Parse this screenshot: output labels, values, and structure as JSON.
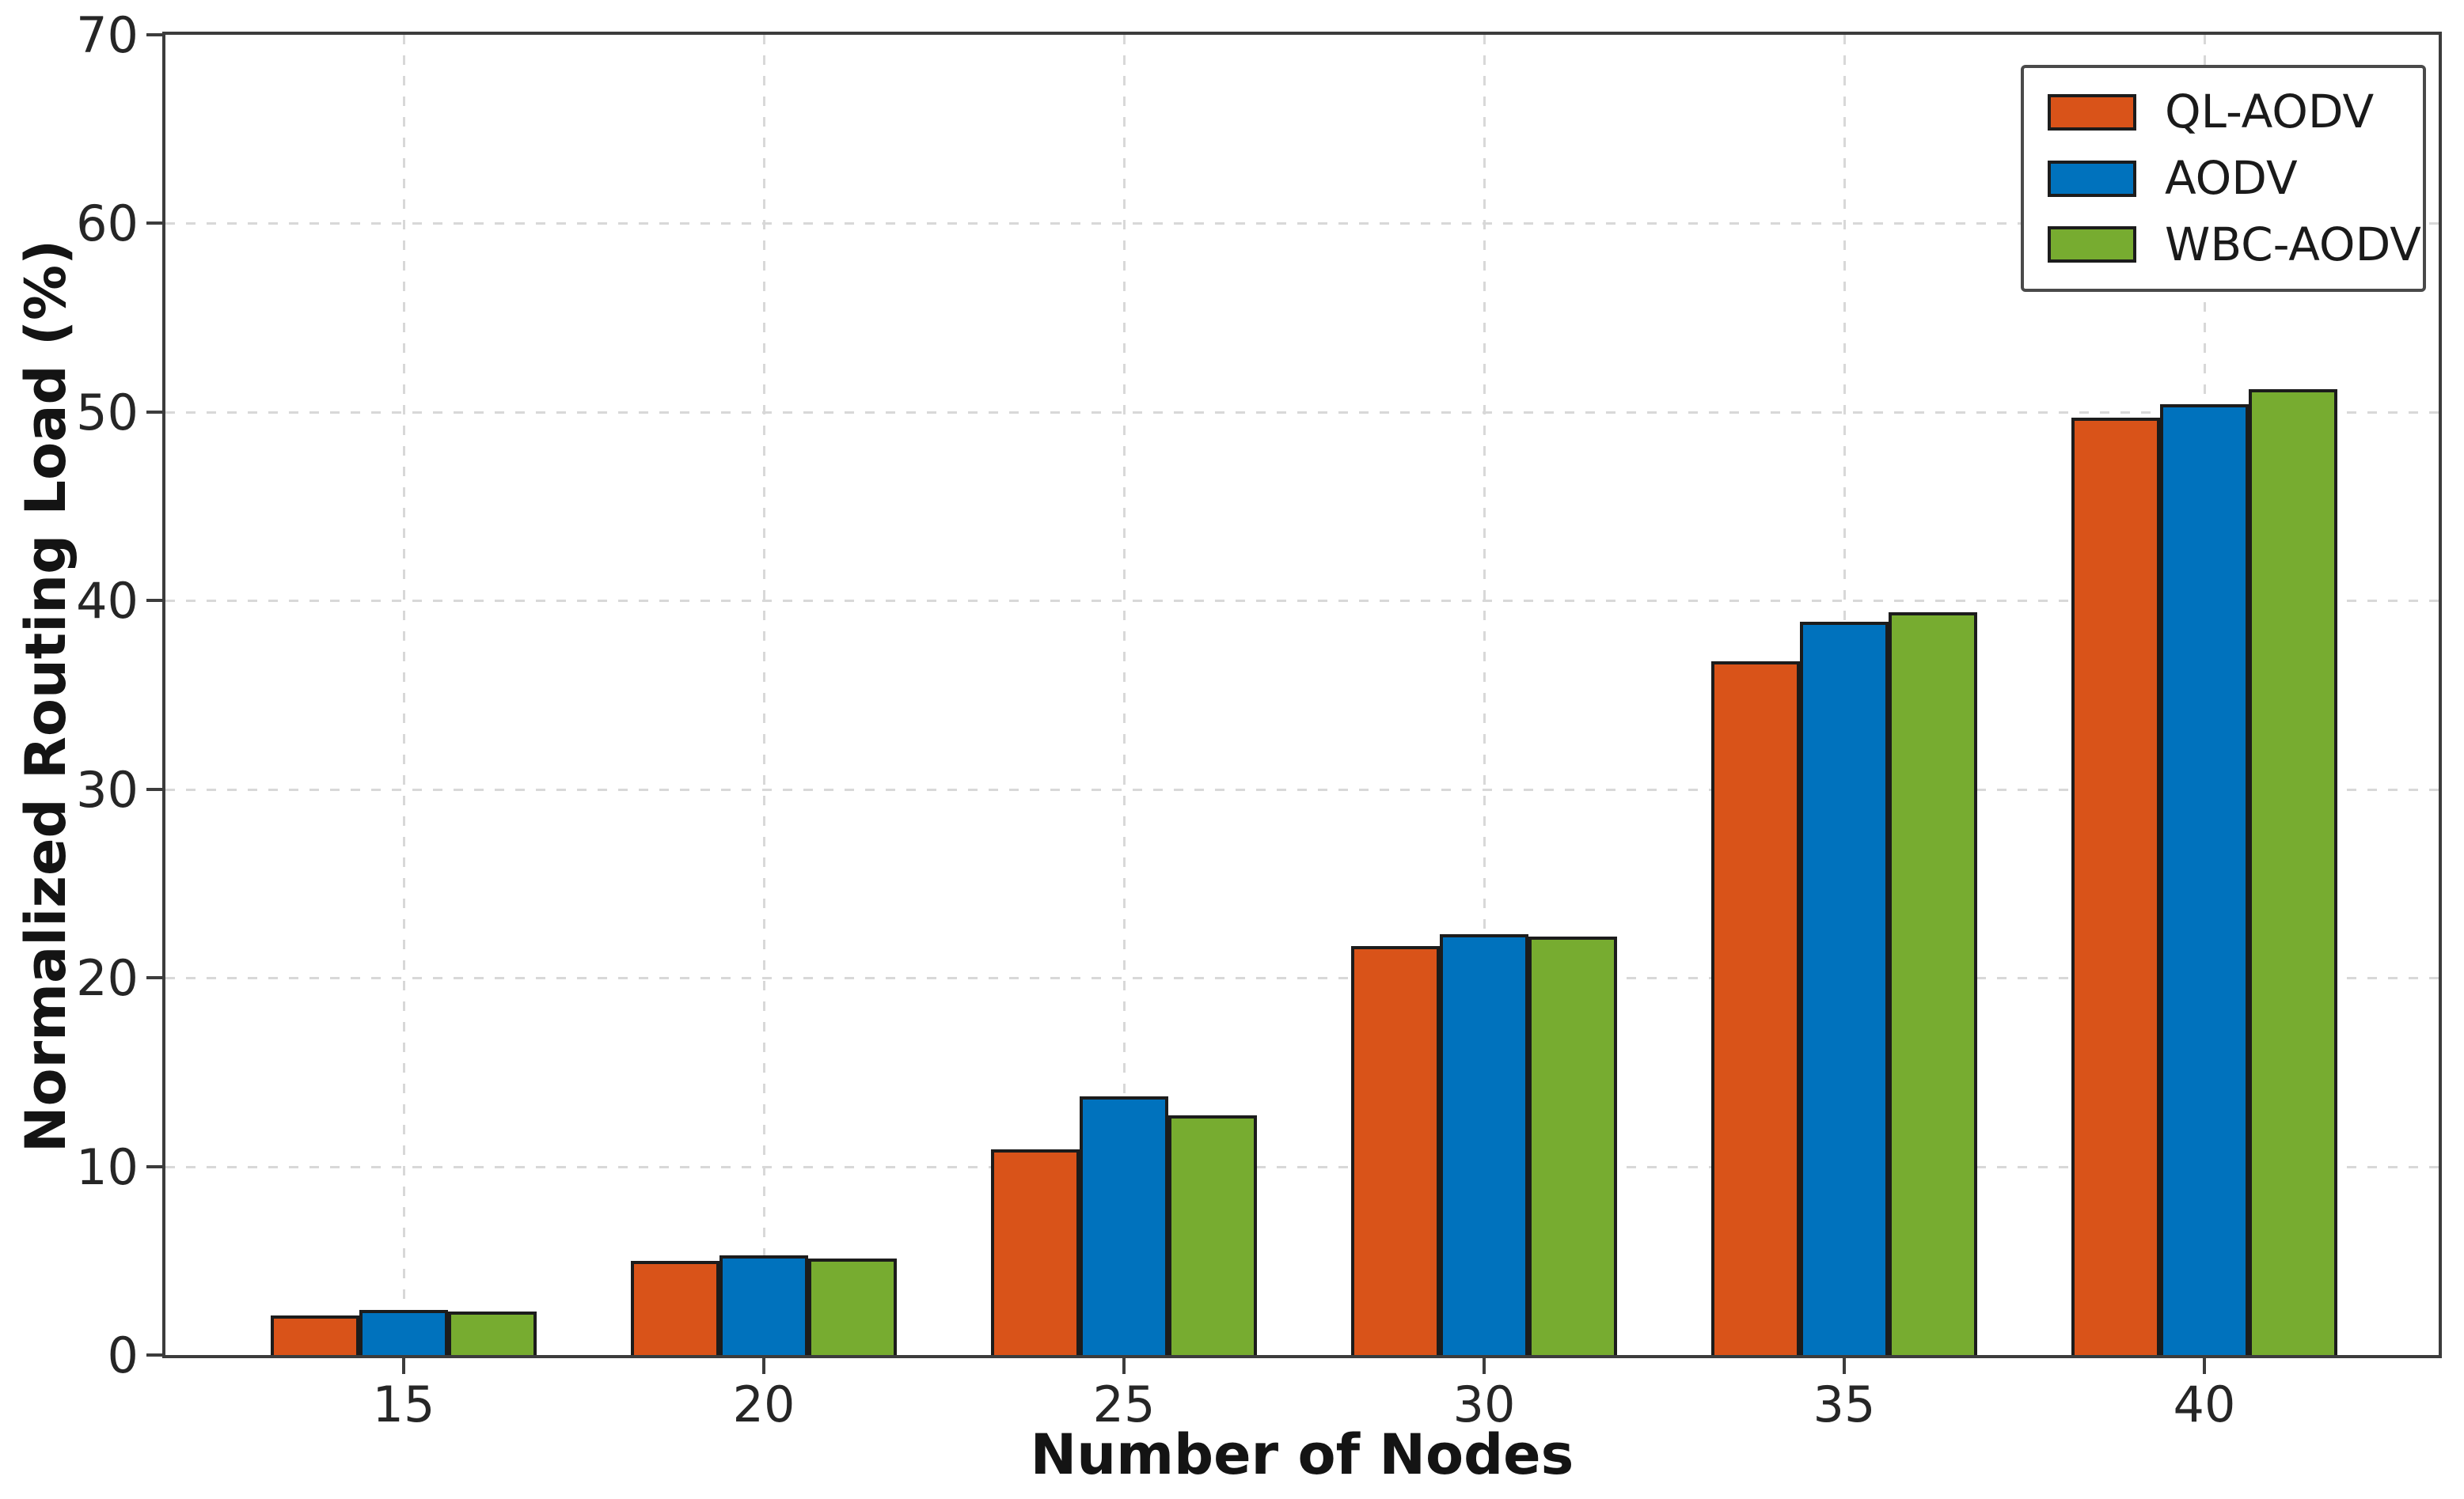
{
  "chart_data": {
    "type": "bar",
    "title": "",
    "xlabel": "Number of Nodes",
    "ylabel": "Normalized Routing Load (%)",
    "categories": [
      15,
      20,
      25,
      30,
      35,
      40
    ],
    "series": [
      {
        "name": "QL-AODV",
        "color": "#D95319",
        "values": [
          2.1,
          5.0,
          10.9,
          21.7,
          36.8,
          49.7
        ]
      },
      {
        "name": "AODV",
        "color": "#0072BD",
        "values": [
          2.4,
          5.3,
          13.7,
          22.3,
          38.9,
          50.4
        ]
      },
      {
        "name": "WBC-AODV",
        "color": "#77AC30",
        "values": [
          2.3,
          5.1,
          12.7,
          22.2,
          39.4,
          51.2
        ]
      }
    ],
    "ylim": [
      0,
      70
    ],
    "yticks": [
      0,
      10,
      20,
      30,
      40,
      50,
      60,
      70
    ],
    "grid": "dashed-both-axes",
    "legend_position": "upper-right",
    "bar_edge_color": "#1c1c1c",
    "axis_color": "#3c3c3c",
    "grid_color": "#d8d8d8"
  }
}
